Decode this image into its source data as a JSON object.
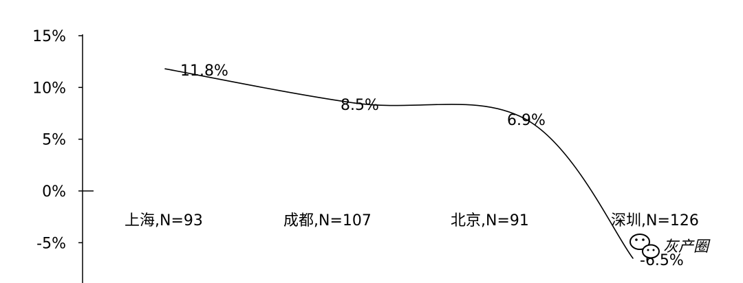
{
  "chart_data": {
    "type": "line",
    "categories": [
      "上海,N=93",
      "成都,N=107",
      "北京,N=91",
      "深圳,N=126"
    ],
    "values": [
      11.8,
      8.5,
      6.9,
      -6.5
    ],
    "data_labels": [
      "11.8%",
      "8.5%",
      "6.9%",
      "-6.5%"
    ],
    "y_ticks": [
      "15%",
      "10%",
      "5%",
      "0%",
      "-5%"
    ],
    "y_tick_values": [
      15,
      10,
      5,
      0,
      -5
    ],
    "ylim": [
      -8.5,
      15
    ],
    "grid": false,
    "line_color": "#000000"
  },
  "watermark": {
    "icon": "wechat-icon",
    "text": "灰产圈"
  }
}
